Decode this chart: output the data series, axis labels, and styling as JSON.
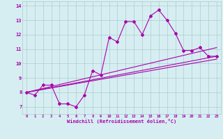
{
  "title": "",
  "xlabel": "Windchill (Refroidissement éolien,°C)",
  "bg_color": "#d6eef2",
  "line_color": "#aa00aa",
  "grid_color": "#aacccc",
  "x_ticks": [
    0,
    1,
    2,
    3,
    4,
    5,
    6,
    7,
    8,
    9,
    10,
    11,
    12,
    13,
    14,
    15,
    16,
    17,
    18,
    19,
    20,
    21,
    22,
    23
  ],
  "xlim": [
    -0.5,
    23.5
  ],
  "ylim": [
    6.5,
    14.3
  ],
  "yticks": [
    7,
    8,
    9,
    10,
    11,
    12,
    13,
    14
  ],
  "series1_x": [
    0,
    1,
    2,
    3,
    4,
    5,
    6,
    7,
    8,
    9,
    10,
    11,
    12,
    13,
    14,
    15,
    16,
    17,
    18,
    19,
    20,
    21,
    22,
    23
  ],
  "series1_y": [
    8.0,
    7.8,
    8.5,
    8.5,
    7.2,
    7.2,
    7.0,
    7.8,
    9.5,
    9.2,
    11.8,
    11.5,
    12.9,
    12.9,
    12.0,
    13.3,
    13.7,
    13.0,
    12.1,
    10.9,
    10.9,
    11.1,
    10.5,
    10.5
  ],
  "series2_x": [
    0,
    23
  ],
  "series2_y": [
    8.0,
    10.5
  ],
  "series3_x": [
    0,
    23
  ],
  "series3_y": [
    8.0,
    11.1
  ],
  "series4_x": [
    0,
    23
  ],
  "series4_y": [
    8.0,
    10.3
  ]
}
